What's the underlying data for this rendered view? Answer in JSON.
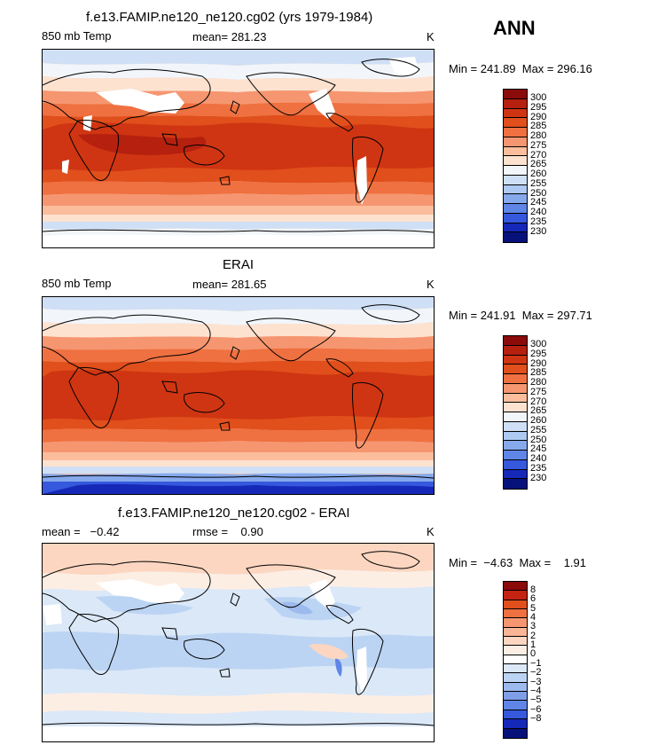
{
  "season": "ANN",
  "panels": [
    {
      "id": "model",
      "title": "f.e13.FAMIP.ne120_ne120.cg02 (yrs 1979-1984)",
      "variable": "850 mb Temp",
      "mean_text": "mean= 281.23",
      "units": "K",
      "minmax_text": "Min = 241.89  Max = 296.16",
      "colorbar_labels": [
        "300",
        "295",
        "290",
        "285",
        "280",
        "275",
        "270",
        "265",
        "260",
        "255",
        "250",
        "245",
        "240",
        "235",
        "230"
      ]
    },
    {
      "id": "obs",
      "title": "ERAI",
      "variable": "850 mb Temp",
      "mean_text": "mean= 281.65",
      "units": "K",
      "minmax_text": "Min = 241.91  Max = 297.71",
      "colorbar_labels": [
        "300",
        "295",
        "290",
        "285",
        "280",
        "275",
        "270",
        "265",
        "260",
        "255",
        "250",
        "245",
        "240",
        "235",
        "230"
      ]
    },
    {
      "id": "diff",
      "title": "f.e13.FAMIP.ne120_ne120.cg02 - ERAI",
      "mean_text": "mean =   −0.42",
      "rmse_text": "rmse =    0.90",
      "units": "K",
      "minmax_text": "Min =  −4.63  Max =    1.91",
      "colorbar_labels": [
        "8",
        "6",
        "5",
        "4",
        "3",
        "2",
        "1",
        "0",
        "−1",
        "−2",
        "−3",
        "−4",
        "−5",
        "−6",
        "−8"
      ]
    }
  ],
  "colors": {
    "abs_scale": [
      "#8b0a0a",
      "#b5200f",
      "#cf3512",
      "#e04f1c",
      "#ef7040",
      "#f59670",
      "#fbbd9c",
      "#fde2d0",
      "#f2f6fb",
      "#cfdff5",
      "#aec9f2",
      "#86a9ec",
      "#5f86e6",
      "#3558dc",
      "#1528b8",
      "#06127a"
    ],
    "diff_scale": [
      "#8b0a0a",
      "#c52312",
      "#e04f1c",
      "#ef7040",
      "#f59670",
      "#f9b595",
      "#fcd6c0",
      "#fdeee4",
      "#ffffff",
      "#dbe8f8",
      "#bcd4f3",
      "#9dbaee",
      "#7f9ee8",
      "#5f86e6",
      "#3558dc",
      "#1528b8",
      "#06127a"
    ]
  }
}
